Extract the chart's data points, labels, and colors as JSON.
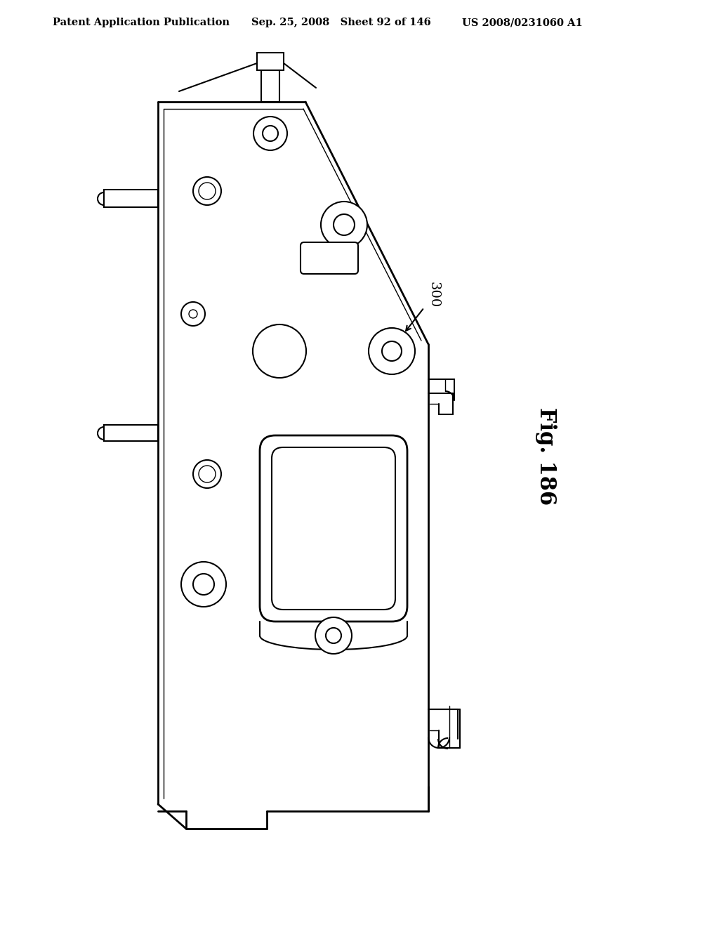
{
  "title_left": "Patent Application Publication",
  "title_mid": "Sep. 25, 2008   Sheet 92 of 146",
  "title_right": "US 2008/0231060 A1",
  "fig_label": "Fig. 186",
  "ref_number": "300",
  "bg_color": "#ffffff",
  "line_color": "#000000"
}
